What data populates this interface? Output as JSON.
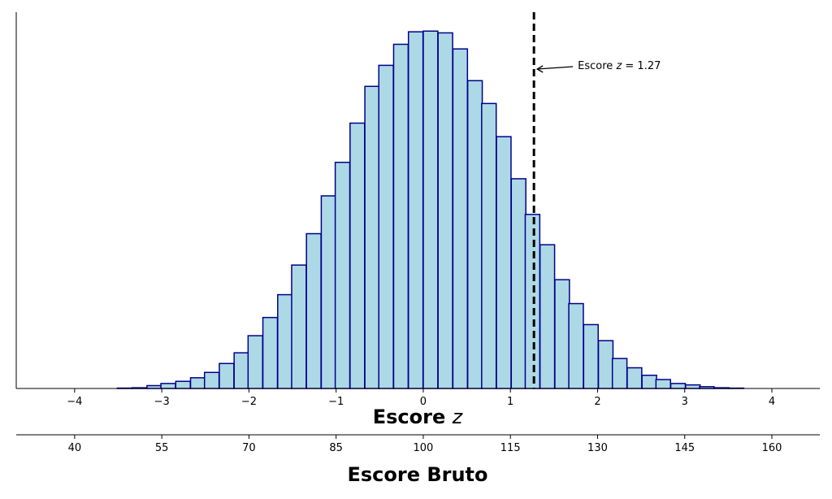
{
  "chart_data": {
    "type": "bar",
    "subtype": "histogram",
    "bin_width": 0.167,
    "bins": [
      {
        "x0": -3.51,
        "count": 1
      },
      {
        "x0": -3.34,
        "count": 2
      },
      {
        "x0": -3.17,
        "count": 8
      },
      {
        "x0": -3.01,
        "count": 14
      },
      {
        "x0": -2.84,
        "count": 20
      },
      {
        "x0": -2.67,
        "count": 30
      },
      {
        "x0": -2.51,
        "count": 45
      },
      {
        "x0": -2.34,
        "count": 70
      },
      {
        "x0": -2.17,
        "count": 100
      },
      {
        "x0": -2.01,
        "count": 148
      },
      {
        "x0": -1.84,
        "count": 199
      },
      {
        "x0": -1.67,
        "count": 263
      },
      {
        "x0": -1.51,
        "count": 346
      },
      {
        "x0": -1.34,
        "count": 434
      },
      {
        "x0": -1.17,
        "count": 540
      },
      {
        "x0": -1.01,
        "count": 634
      },
      {
        "x0": -0.84,
        "count": 744
      },
      {
        "x0": -0.67,
        "count": 847
      },
      {
        "x0": -0.51,
        "count": 906
      },
      {
        "x0": -0.34,
        "count": 965
      },
      {
        "x0": -0.17,
        "count": 1000
      },
      {
        "x0": 0.0,
        "count": 1002
      },
      {
        "x0": 0.17,
        "count": 997
      },
      {
        "x0": 0.34,
        "count": 952
      },
      {
        "x0": 0.51,
        "count": 863
      },
      {
        "x0": 0.67,
        "count": 799
      },
      {
        "x0": 0.84,
        "count": 706
      },
      {
        "x0": 1.01,
        "count": 588
      },
      {
        "x0": 1.17,
        "count": 488
      },
      {
        "x0": 1.34,
        "count": 403
      },
      {
        "x0": 1.51,
        "count": 305
      },
      {
        "x0": 1.67,
        "count": 238
      },
      {
        "x0": 1.84,
        "count": 179
      },
      {
        "x0": 2.01,
        "count": 134
      },
      {
        "x0": 2.17,
        "count": 84
      },
      {
        "x0": 2.34,
        "count": 58
      },
      {
        "x0": 2.51,
        "count": 37
      },
      {
        "x0": 2.67,
        "count": 25
      },
      {
        "x0": 2.84,
        "count": 14
      },
      {
        "x0": 3.01,
        "count": 10
      },
      {
        "x0": 3.17,
        "count": 5
      },
      {
        "x0": 3.34,
        "count": 2
      },
      {
        "x0": 3.51,
        "count": 1
      }
    ],
    "xlim": [
      -4.67,
      4.55
    ],
    "ylim": [
      0,
      1055
    ],
    "xticks": [
      -4,
      -3,
      -2,
      -1,
      0,
      1,
      2,
      3,
      4
    ],
    "xtick_labels": [
      "−4",
      "−3",
      "−2",
      "−1",
      "0",
      "1",
      "2",
      "3",
      "4"
    ],
    "xlabel_prefix": "Escore ",
    "xlabel_var": "z",
    "secondary_xaxis": {
      "label": "Escore Bruto",
      "ticks": [
        40,
        55,
        70,
        85,
        100,
        115,
        130,
        145,
        160
      ],
      "mean": 100,
      "sd": 15
    },
    "marker": {
      "z": 1.27,
      "style": "dashed",
      "annotation_prefix": "Escore ",
      "annotation_var": "z",
      "annotation_suffix": " = 1.27"
    },
    "grid": false,
    "legend": "none",
    "colors": {
      "bar_fill": "#add8e6",
      "bar_edge": "#00008b",
      "marker": "#000000"
    }
  }
}
